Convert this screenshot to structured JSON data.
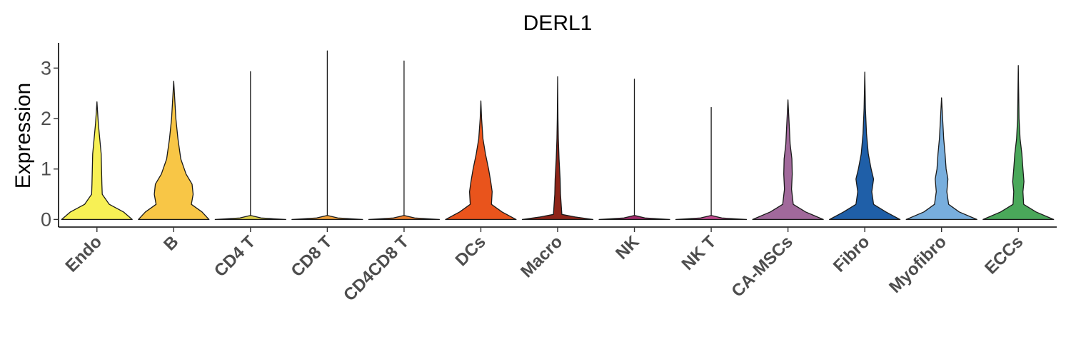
{
  "chart_data": {
    "type": "violin",
    "title": "DERL1",
    "xlabel": "",
    "ylabel": "Expression",
    "ylim": [
      -0.15,
      3.5
    ],
    "yticks": [
      0,
      1,
      2,
      3
    ],
    "grid": false,
    "legend": "none",
    "categories": [
      "Endo",
      "B",
      "CD4 T",
      "CD8 T",
      "CD4CD8 T",
      "DCs",
      "Macro",
      "NK",
      "NK T",
      "CA-MSCs",
      "Fibro",
      "Myofibro",
      "ECCs"
    ],
    "colors": [
      "#f7f055",
      "#f8c646",
      "#e0d24a",
      "#f2a23a",
      "#ee7f2d",
      "#e9541c",
      "#8e2418",
      "#a12a6a",
      "#c34a8f",
      "#a1699b",
      "#1f5fa8",
      "#78aedd",
      "#4aa85a"
    ],
    "series": [
      {
        "category": "Endo",
        "max": 2.33,
        "profile": [
          [
            0,
            1.0
          ],
          [
            0.15,
            0.75
          ],
          [
            0.3,
            0.35
          ],
          [
            0.5,
            0.15
          ],
          [
            0.7,
            0.14
          ],
          [
            1.0,
            0.13
          ],
          [
            1.3,
            0.12
          ],
          [
            1.6,
            0.08
          ],
          [
            1.9,
            0.04
          ],
          [
            2.33,
            0
          ]
        ]
      },
      {
        "category": "B",
        "max": 2.74,
        "profile": [
          [
            0,
            1.0
          ],
          [
            0.15,
            0.8
          ],
          [
            0.3,
            0.5
          ],
          [
            0.5,
            0.55
          ],
          [
            0.7,
            0.52
          ],
          [
            0.9,
            0.35
          ],
          [
            1.2,
            0.2
          ],
          [
            1.6,
            0.12
          ],
          [
            2.0,
            0.06
          ],
          [
            2.74,
            0
          ]
        ]
      },
      {
        "category": "CD4 T",
        "max": 2.93,
        "profile": [
          [
            0,
            1.0
          ],
          [
            0.03,
            0.3
          ],
          [
            0.08,
            0.0
          ],
          [
            2.93,
            0
          ]
        ]
      },
      {
        "category": "CD8 T",
        "max": 3.34,
        "profile": [
          [
            0,
            1.0
          ],
          [
            0.03,
            0.3
          ],
          [
            0.08,
            0.0
          ],
          [
            3.34,
            0
          ]
        ]
      },
      {
        "category": "CD4CD8 T",
        "max": 3.14,
        "profile": [
          [
            0,
            1.0
          ],
          [
            0.03,
            0.3
          ],
          [
            0.08,
            0.0
          ],
          [
            3.14,
            0
          ]
        ]
      },
      {
        "category": "DCs",
        "max": 2.35,
        "profile": [
          [
            0,
            1.0
          ],
          [
            0.15,
            0.6
          ],
          [
            0.3,
            0.3
          ],
          [
            0.55,
            0.32
          ],
          [
            0.75,
            0.28
          ],
          [
            1.0,
            0.22
          ],
          [
            1.3,
            0.13
          ],
          [
            1.6,
            0.06
          ],
          [
            2.0,
            0.02
          ],
          [
            2.35,
            0
          ]
        ]
      },
      {
        "category": "Macro",
        "max": 2.83,
        "profile": [
          [
            0,
            1.0
          ],
          [
            0.05,
            0.5
          ],
          [
            0.1,
            0.12
          ],
          [
            0.5,
            0.08
          ],
          [
            0.8,
            0.07
          ],
          [
            1.2,
            0.04
          ],
          [
            1.6,
            0.02
          ],
          [
            2.0,
            0.01
          ],
          [
            2.83,
            0
          ]
        ]
      },
      {
        "category": "NK",
        "max": 2.78,
        "profile": [
          [
            0,
            1.0
          ],
          [
            0.03,
            0.3
          ],
          [
            0.08,
            0.0
          ],
          [
            2.78,
            0
          ]
        ]
      },
      {
        "category": "NK T",
        "max": 2.22,
        "profile": [
          [
            0,
            1.0
          ],
          [
            0.03,
            0.3
          ],
          [
            0.08,
            0.0
          ],
          [
            2.22,
            0
          ]
        ]
      },
      {
        "category": "CA-MSCs",
        "max": 2.37,
        "profile": [
          [
            0,
            1.0
          ],
          [
            0.15,
            0.5
          ],
          [
            0.3,
            0.15
          ],
          [
            0.6,
            0.1
          ],
          [
            0.9,
            0.12
          ],
          [
            1.2,
            0.11
          ],
          [
            1.5,
            0.06
          ],
          [
            1.8,
            0.04
          ],
          [
            2.37,
            0
          ]
        ]
      },
      {
        "category": "Fibro",
        "max": 2.92,
        "profile": [
          [
            0,
            1.0
          ],
          [
            0.15,
            0.6
          ],
          [
            0.3,
            0.25
          ],
          [
            0.55,
            0.2
          ],
          [
            0.8,
            0.25
          ],
          [
            1.0,
            0.18
          ],
          [
            1.3,
            0.1
          ],
          [
            1.7,
            0.05
          ],
          [
            2.2,
            0.02
          ],
          [
            2.92,
            0
          ]
        ]
      },
      {
        "category": "Myofibro",
        "max": 2.41,
        "profile": [
          [
            0,
            1.0
          ],
          [
            0.15,
            0.5
          ],
          [
            0.3,
            0.2
          ],
          [
            0.55,
            0.15
          ],
          [
            0.8,
            0.18
          ],
          [
            1.0,
            0.13
          ],
          [
            1.3,
            0.1
          ],
          [
            1.6,
            0.06
          ],
          [
            2.0,
            0.03
          ],
          [
            2.41,
            0
          ]
        ]
      },
      {
        "category": "ECCs",
        "max": 3.05,
        "profile": [
          [
            0,
            1.0
          ],
          [
            0.15,
            0.5
          ],
          [
            0.3,
            0.15
          ],
          [
            0.55,
            0.13
          ],
          [
            0.75,
            0.16
          ],
          [
            1.0,
            0.13
          ],
          [
            1.3,
            0.1
          ],
          [
            1.6,
            0.05
          ],
          [
            2.0,
            0.02
          ],
          [
            3.05,
            0
          ]
        ]
      }
    ]
  }
}
